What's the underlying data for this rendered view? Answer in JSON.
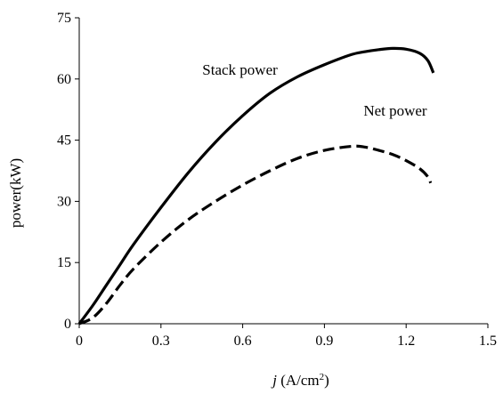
{
  "chart_data": {
    "type": "line",
    "title": "",
    "xlabel": "j (A/cm²)",
    "xlabel_parts": {
      "var": "j",
      "unit_prefix": " (A/cm",
      "unit_sup": "2",
      "unit_suffix": ")"
    },
    "ylabel": "power(kW)",
    "xlim": [
      0,
      1.5
    ],
    "ylim": [
      0,
      75
    ],
    "xticks": [
      0,
      0.3,
      0.6,
      0.9,
      1.2,
      1.5
    ],
    "xtick_labels": [
      "0",
      "0.3",
      "0.6",
      "0.9",
      "1.2",
      "1.5"
    ],
    "yticks": [
      0,
      15,
      30,
      45,
      60,
      75
    ],
    "ytick_labels": [
      "0",
      "15",
      "30",
      "45",
      "60",
      "75"
    ],
    "grid": false,
    "legend": "none",
    "series": [
      {
        "name": "Stack power",
        "style": "solid",
        "color": "#000000",
        "x": [
          0,
          0.05,
          0.1,
          0.15,
          0.2,
          0.3,
          0.4,
          0.5,
          0.6,
          0.7,
          0.8,
          0.9,
          1.0,
          1.05,
          1.1,
          1.15,
          1.2,
          1.25,
          1.28,
          1.3
        ],
        "y": [
          0,
          4.5,
          9.5,
          14.5,
          19.5,
          28.5,
          37,
          44.5,
          51,
          56.5,
          60.5,
          63.5,
          66,
          66.7,
          67.2,
          67.5,
          67.3,
          66.3,
          64.5,
          61.5
        ]
      },
      {
        "name": "Net power",
        "style": "dashed",
        "color": "#000000",
        "x": [
          0,
          0.05,
          0.1,
          0.15,
          0.2,
          0.3,
          0.4,
          0.5,
          0.6,
          0.7,
          0.8,
          0.9,
          1.0,
          1.05,
          1.1,
          1.15,
          1.2,
          1.25,
          1.28,
          1.29
        ],
        "y": [
          0,
          1.5,
          5,
          9.5,
          13.5,
          20,
          25.5,
          30,
          34,
          37.5,
          40.5,
          42.5,
          43.5,
          43.3,
          42.5,
          41.5,
          40,
          38,
          36,
          34.5
        ]
      }
    ],
    "annotations": [
      {
        "text": "Stack power",
        "x": 0.59,
        "y": 61,
        "anchor": "middle"
      },
      {
        "text": "Net power",
        "x": 1.16,
        "y": 51,
        "anchor": "middle"
      }
    ]
  }
}
